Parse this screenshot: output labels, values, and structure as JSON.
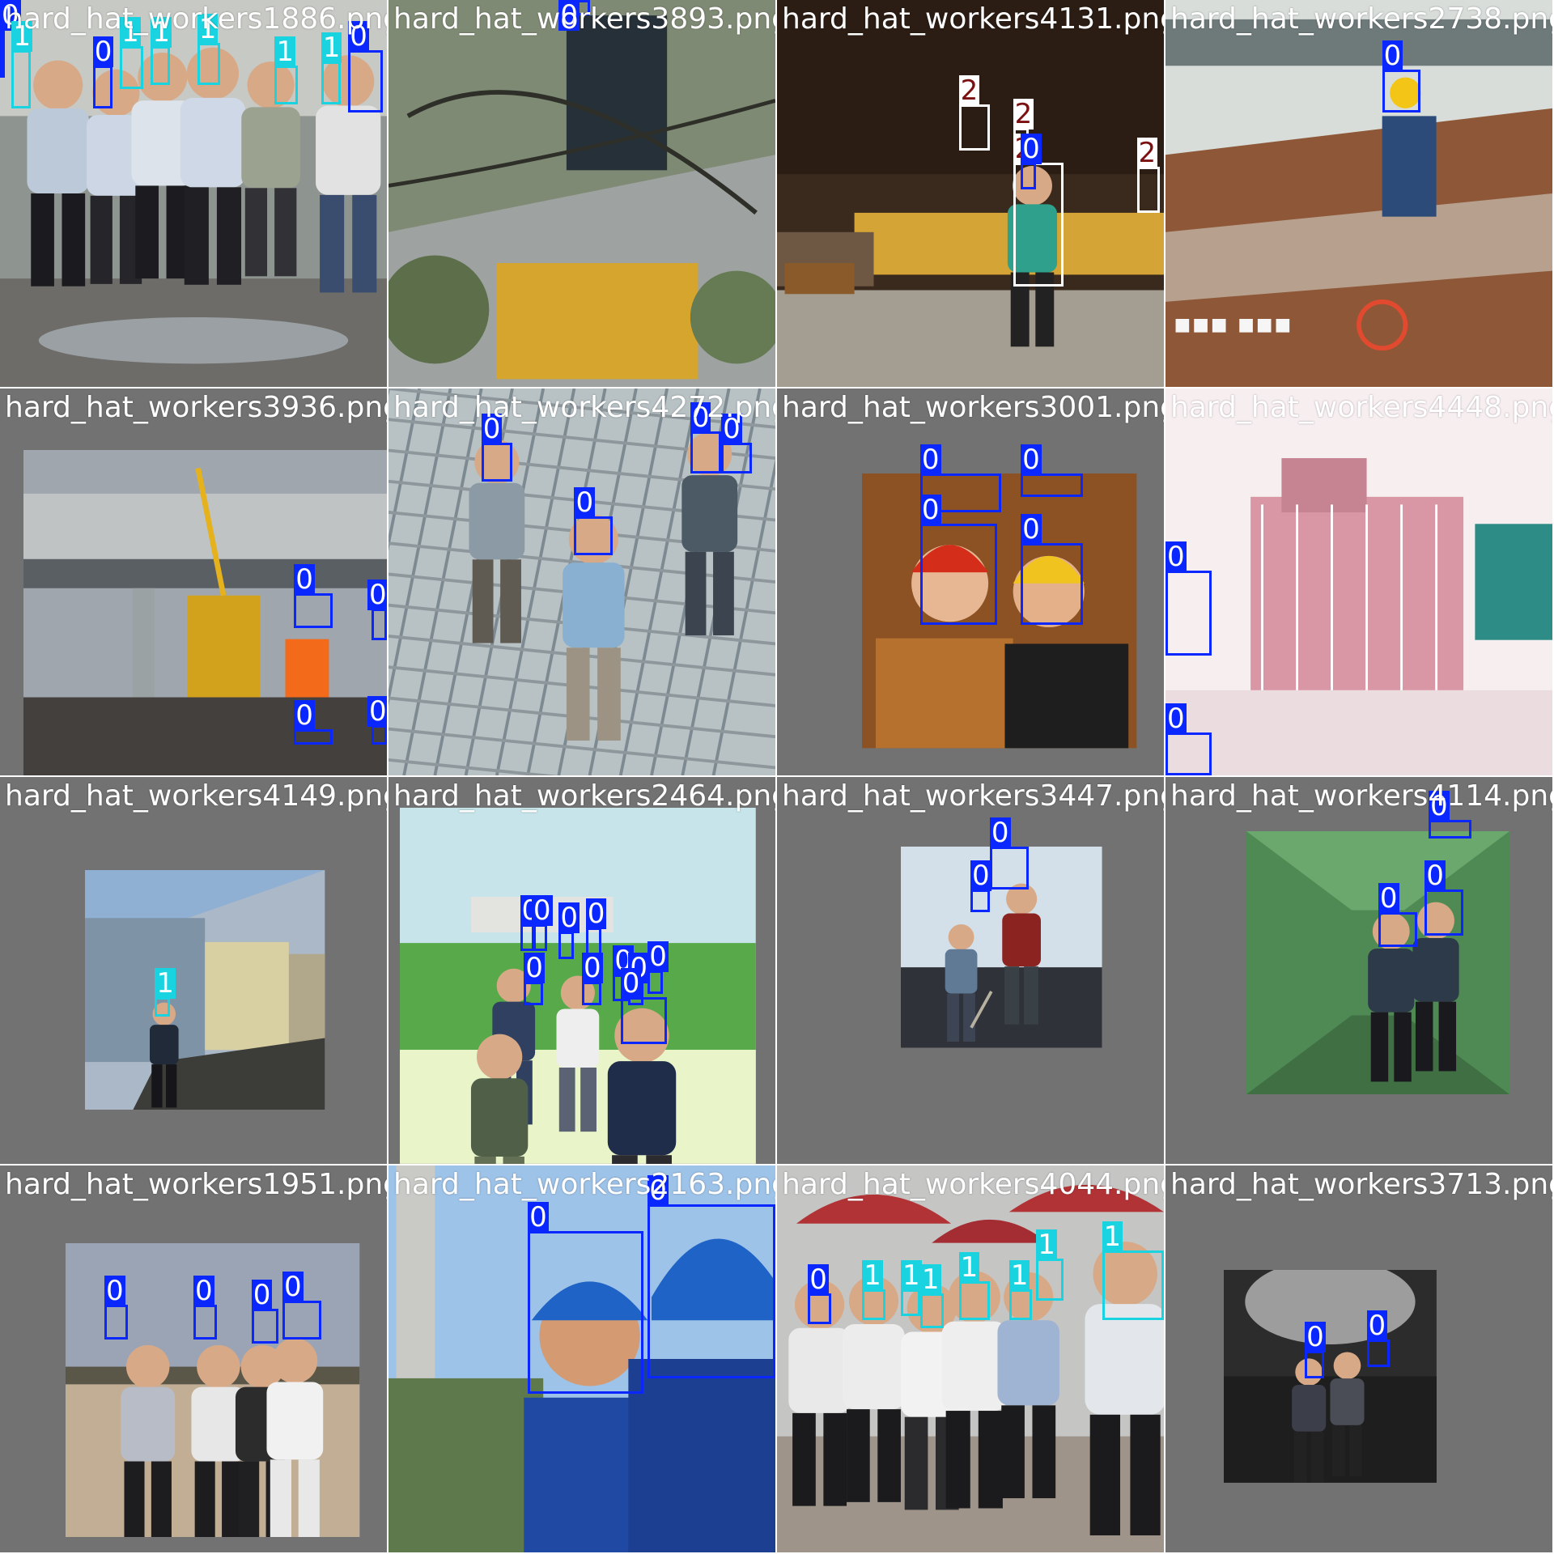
{
  "class_colors": {
    "0": "#0a27ff",
    "1": "#1ad3e0",
    "2": "#ffffff"
  },
  "class_text_colors": {
    "0": "#ffffff",
    "1": "#ffffff",
    "2": "#7a1010"
  },
  "tiles": [
    {
      "file": "hard_hat_workers1886.png",
      "scene": "outdoor-group",
      "padded": false,
      "boxes": [
        {
          "cls": "0",
          "r": [
            0,
            5,
            1,
            15
          ]
        },
        {
          "cls": "1",
          "r": [
            3,
            13,
            5,
            15
          ]
        },
        {
          "cls": "0",
          "r": [
            24,
            17,
            5,
            11
          ]
        },
        {
          "cls": "1",
          "r": [
            31,
            12,
            6,
            11
          ]
        },
        {
          "cls": "1",
          "r": [
            39,
            12,
            5,
            10
          ]
        },
        {
          "cls": "1",
          "r": [
            51,
            11,
            6,
            11
          ]
        },
        {
          "cls": "1",
          "r": [
            71,
            17,
            6,
            10
          ]
        },
        {
          "cls": "1",
          "r": [
            83,
            16,
            5,
            11
          ]
        },
        {
          "cls": "0",
          "r": [
            90,
            13,
            9,
            16
          ]
        }
      ]
    },
    {
      "file": "hard_hat_workers3893.png",
      "scene": "tree-worker",
      "padded": false,
      "boxes": [
        {
          "cls": "0",
          "r": [
            44,
            0,
            8,
            4
          ]
        }
      ]
    },
    {
      "file": "hard_hat_workers4131.png",
      "scene": "lumber-yard",
      "padded": false,
      "boxes": [
        {
          "cls": "2",
          "r": [
            47,
            27,
            8,
            12
          ]
        },
        {
          "cls": "2",
          "r": [
            61,
            33,
            4,
            7
          ]
        },
        {
          "cls": "2",
          "r": [
            61,
            42,
            13,
            32
          ]
        },
        {
          "cls": "2",
          "r": [
            93,
            43,
            6,
            12
          ]
        },
        {
          "cls": "0",
          "r": [
            63,
            42,
            4,
            7
          ]
        }
      ]
    },
    {
      "file": "hard_hat_workers2738.png",
      "scene": "bridge-site",
      "padded": false,
      "boxes": [
        {
          "cls": "0",
          "r": [
            56,
            18,
            10,
            11
          ]
        }
      ]
    },
    {
      "file": "hard_hat_workers3936.png",
      "scene": "crane-road",
      "padded": true,
      "boxes": [
        {
          "cls": "0",
          "r": [
            76,
            53,
            10,
            9
          ]
        },
        {
          "cls": "0",
          "r": [
            96,
            57,
            4,
            8
          ]
        },
        {
          "cls": "0",
          "r": [
            76,
            88,
            10,
            4
          ]
        },
        {
          "cls": "0",
          "r": [
            96,
            87,
            4,
            5
          ]
        }
      ]
    },
    {
      "file": "hard_hat_workers4272.png",
      "scene": "rebar-grid",
      "padded": false,
      "boxes": [
        {
          "cls": "0",
          "r": [
            24,
            14,
            8,
            10
          ]
        },
        {
          "cls": "0",
          "r": [
            48,
            33,
            10,
            10
          ]
        },
        {
          "cls": "0",
          "r": [
            78,
            11,
            8,
            11
          ]
        },
        {
          "cls": "0",
          "r": [
            86,
            14,
            8,
            8
          ]
        }
      ]
    },
    {
      "file": "hard_hat_workers3001.png",
      "scene": "two-workers-studio",
      "padded": true,
      "boxes": [
        {
          "cls": "0",
          "r": [
            37,
            22,
            21,
            10
          ]
        },
        {
          "cls": "0",
          "r": [
            63,
            22,
            16,
            6
          ]
        },
        {
          "cls": "0",
          "r": [
            37,
            35,
            20,
            26
          ]
        },
        {
          "cls": "0",
          "r": [
            63,
            40,
            16,
            21
          ]
        }
      ]
    },
    {
      "file": "hard_hat_workers4448.png",
      "scene": "pink-building",
      "padded": false,
      "boxes": [
        {
          "cls": "0",
          "r": [
            0,
            47,
            12,
            22
          ]
        },
        {
          "cls": "0",
          "r": [
            0,
            89,
            12,
            11
          ]
        }
      ]
    },
    {
      "file": "hard_hat_workers4149.png",
      "scene": "billboard-wall",
      "padded": true,
      "boxes": [
        {
          "cls": "1",
          "r": [
            40,
            57,
            4,
            5
          ]
        }
      ]
    },
    {
      "file": "hard_hat_workers2464.png",
      "scene": "rice-field",
      "padded": true,
      "boxes": [
        {
          "cls": "0",
          "r": [
            34,
            38,
            4,
            7
          ]
        },
        {
          "cls": "0",
          "r": [
            37,
            38,
            4,
            7
          ]
        },
        {
          "cls": "0",
          "r": [
            44,
            40,
            4,
            7
          ]
        },
        {
          "cls": "0",
          "r": [
            51,
            39,
            4,
            7
          ]
        },
        {
          "cls": "0",
          "r": [
            35,
            53,
            5,
            6
          ]
        },
        {
          "cls": "0",
          "r": [
            50,
            53,
            5,
            6
          ]
        },
        {
          "cls": "0",
          "r": [
            58,
            51,
            4,
            7
          ]
        },
        {
          "cls": "0",
          "r": [
            62,
            53,
            4,
            6
          ]
        },
        {
          "cls": "0",
          "r": [
            67,
            50,
            4,
            6
          ]
        },
        {
          "cls": "0",
          "r": [
            60,
            57,
            12,
            12
          ]
        }
      ]
    },
    {
      "file": "hard_hat_workers3447.png",
      "scene": "shovel-workers",
      "padded": true,
      "boxes": [
        {
          "cls": "0",
          "r": [
            55,
            18,
            10,
            11
          ]
        },
        {
          "cls": "0",
          "r": [
            50,
            29,
            5,
            6
          ]
        }
      ]
    },
    {
      "file": "hard_hat_workers4114.png",
      "scene": "green-interior",
      "padded": true,
      "boxes": [
        {
          "cls": "0",
          "r": [
            68,
            11,
            11,
            5
          ]
        },
        {
          "cls": "0",
          "r": [
            55,
            35,
            10,
            9
          ]
        },
        {
          "cls": "0",
          "r": [
            67,
            29,
            10,
            12
          ]
        }
      ]
    },
    {
      "file": "hard_hat_workers1951.png",
      "scene": "dirt-lot",
      "padded": true,
      "boxes": [
        {
          "cls": "0",
          "r": [
            27,
            36,
            6,
            9
          ]
        },
        {
          "cls": "0",
          "r": [
            50,
            36,
            6,
            9
          ]
        },
        {
          "cls": "0",
          "r": [
            65,
            37,
            7,
            9
          ]
        },
        {
          "cls": "0",
          "r": [
            73,
            35,
            10,
            10
          ]
        }
      ]
    },
    {
      "file": "hard_hat_workers2163.png",
      "scene": "blue-helmets",
      "padded": false,
      "boxes": [
        {
          "cls": "0",
          "r": [
            36,
            17,
            30,
            42
          ]
        },
        {
          "cls": "0",
          "r": [
            67,
            10,
            33,
            45
          ]
        }
      ]
    },
    {
      "file": "hard_hat_workers4044.png",
      "scene": "umbrella-group",
      "padded": false,
      "boxes": [
        {
          "cls": "0",
          "r": [
            8,
            33,
            6,
            8
          ]
        },
        {
          "cls": "1",
          "r": [
            22,
            32,
            6,
            8
          ]
        },
        {
          "cls": "1",
          "r": [
            32,
            32,
            5,
            7
          ]
        },
        {
          "cls": "1",
          "r": [
            37,
            33,
            6,
            9
          ]
        },
        {
          "cls": "1",
          "r": [
            47,
            30,
            8,
            10
          ]
        },
        {
          "cls": "1",
          "r": [
            60,
            32,
            6,
            8
          ]
        },
        {
          "cls": "1",
          "r": [
            67,
            24,
            7,
            11
          ]
        },
        {
          "cls": "1",
          "r": [
            84,
            22,
            16,
            18
          ]
        }
      ]
    },
    {
      "file": "hard_hat_workers3713.png",
      "scene": "dark-tunnel",
      "padded": true,
      "boxes": [
        {
          "cls": "0",
          "r": [
            36,
            48,
            5,
            7
          ]
        },
        {
          "cls": "0",
          "r": [
            52,
            45,
            6,
            7
          ]
        }
      ]
    }
  ]
}
